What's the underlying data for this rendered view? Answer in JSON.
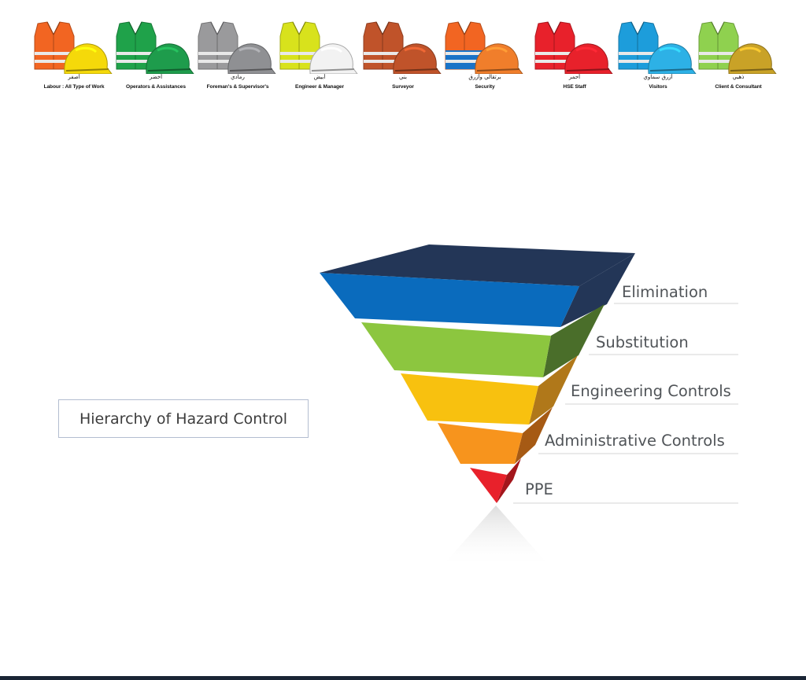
{
  "ppe_items": [
    {
      "arabic": "أصفر",
      "english": "Labour : All Type of Work",
      "vest_color": "#f26522",
      "helmet_color": "#f5d90a"
    },
    {
      "arabic": "أخضر",
      "english": "Operators & Assistances",
      "vest_color": "#1fa24a",
      "helmet_color": "#1e9c4c"
    },
    {
      "arabic": "رمادي",
      "english": "Foreman's & Supervisor's",
      "vest_color": "#9a9a9c",
      "helmet_color": "#8f9093"
    },
    {
      "arabic": "أبيض",
      "english": "Engineer & Manager",
      "vest_color": "#d8e21c",
      "helmet_color": "#f2f2f2"
    },
    {
      "arabic": "بني",
      "english": "Surveyor",
      "vest_color": "#c0532a",
      "helmet_color": "#c0532a"
    },
    {
      "arabic": "برتقالي وأزرق",
      "english": "Security",
      "vest_color": "#f26522",
      "helmet_color": "#f07e2b",
      "stripe_color": "#1a73c7"
    },
    {
      "arabic": "أحمر",
      "english": "HSE Staff",
      "vest_color": "#e8212b",
      "helmet_color": "#e8212b"
    },
    {
      "arabic": "أزرق سماوي",
      "english": "Visitors",
      "vest_color": "#1d9ddb",
      "helmet_color": "#2db1e6"
    },
    {
      "arabic": "ذهبي",
      "english": "Client & Consultant",
      "vest_color": "#8fd14f",
      "helmet_color": "#c9a227"
    }
  ],
  "hierarchy": {
    "title": "Hierarchy of Hazard Control",
    "levels": [
      {
        "label": "Elimination",
        "color": "#0a6bbd",
        "side_color": "#233657",
        "top_color": "#233657"
      },
      {
        "label": "Substitution",
        "color": "#8cc63f",
        "side_color": "#4a6e2a"
      },
      {
        "label": "Engineering Controls",
        "color": "#f8c10f",
        "side_color": "#b0781a"
      },
      {
        "label": "Administrative Controls",
        "color": "#f7941d",
        "side_color": "#a65a14"
      },
      {
        "label": "PPE",
        "color": "#e8212b",
        "side_color": "#a3161c"
      }
    ]
  }
}
